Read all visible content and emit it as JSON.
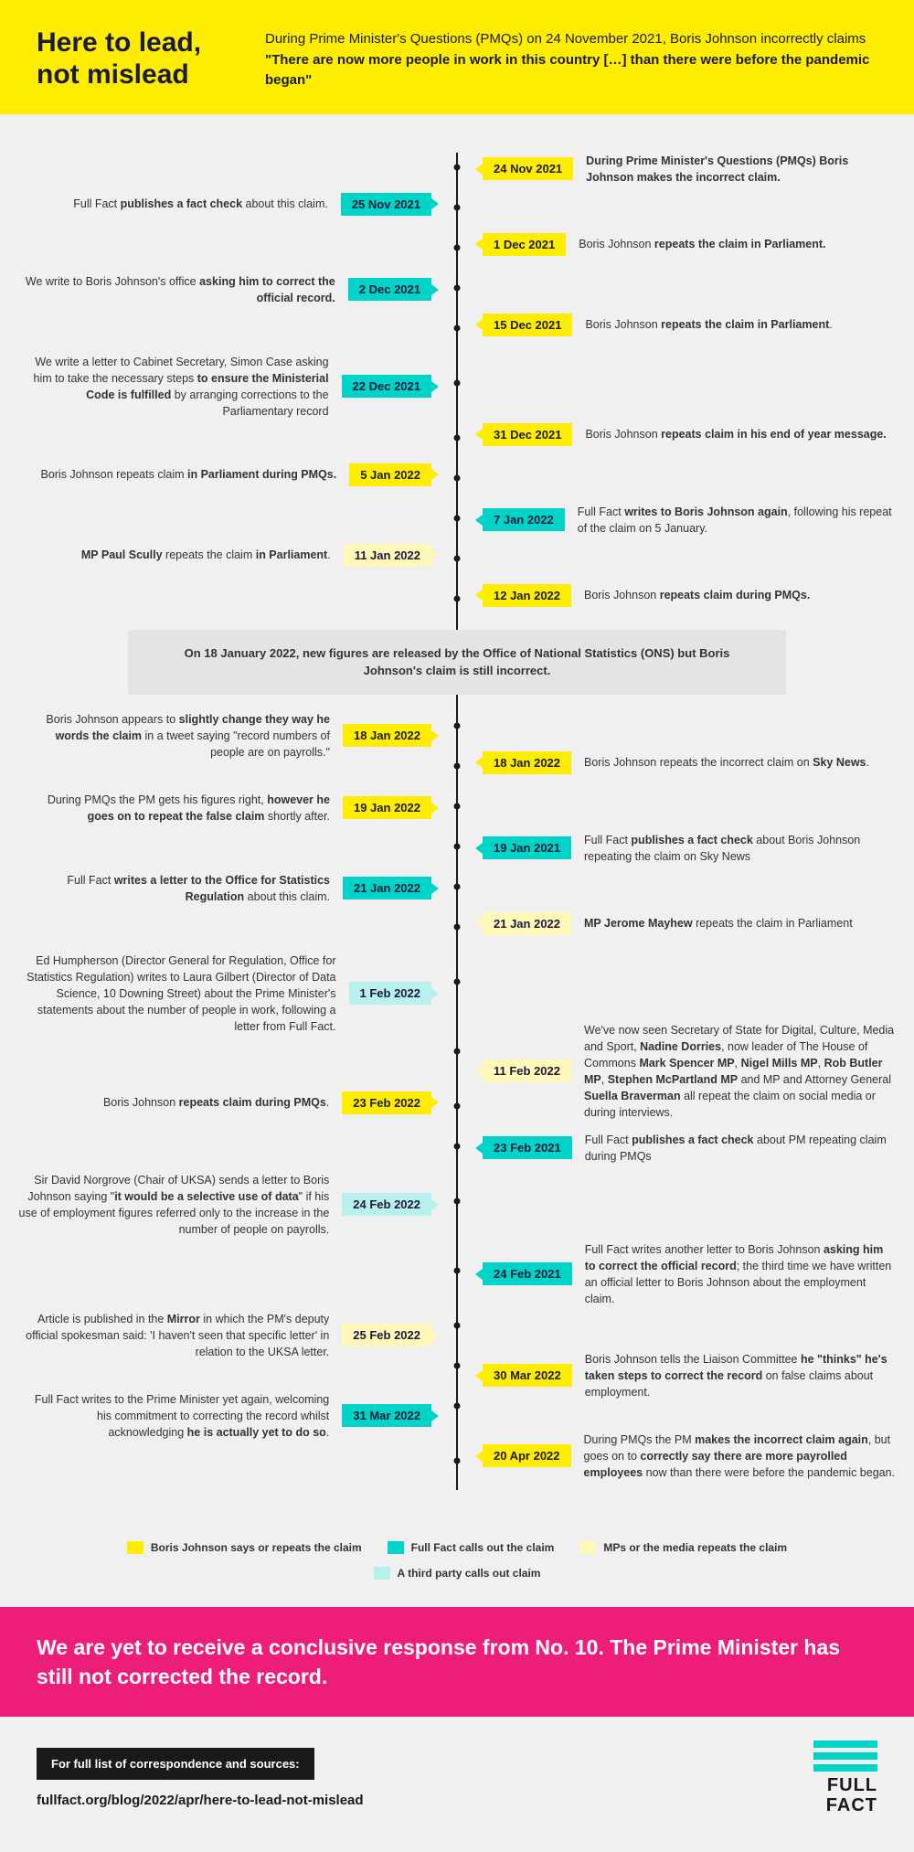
{
  "header": {
    "title": "Here to lead, not mislead",
    "desc": "During Prime Minister's Questions (PMQs) on 24 November 2021, Boris Johnson incorrectly claims <b>\"There are now more people in work in this country […] than there were before the pandemic began\"</b>"
  },
  "colors": {
    "bj": "#ffed00",
    "ff": "#00d4c8",
    "mp": "#fff8b8",
    "tp": "#b8f0ed",
    "pink": "#ed1e79"
  },
  "timeline": [
    {
      "side": "right",
      "color": "bj",
      "date": "24 Nov 2021",
      "html": "<b>During Prime Minister's Questions (PMQs) Boris Johnson makes the incorrect claim.</b>"
    },
    {
      "side": "left",
      "color": "ff",
      "date": "25 Nov 2021",
      "html": "Full Fact <b>publishes a fact check</b> about this claim."
    },
    {
      "side": "right",
      "color": "bj",
      "date": "1 Dec 2021",
      "html": "Boris Johnson <b>repeats the claim in Parliament.</b>"
    },
    {
      "side": "left",
      "color": "ff",
      "date": "2 Dec 2021",
      "html": "We write to Boris Johnson's office <b>asking him to correct the official record.</b>"
    },
    {
      "side": "right",
      "color": "bj",
      "date": "15 Dec 2021",
      "html": "Boris Johnson <b>repeats the claim in Parliament</b>."
    },
    {
      "side": "left",
      "color": "ff",
      "date": "22 Dec 2021",
      "html": "We write a letter to Cabinet Secretary, Simon Case asking him to take the necessary steps <b>to ensure the Ministerial Code is fulfilled</b> by arranging corrections to the Parliamentary record",
      "tall": true
    },
    {
      "side": "right",
      "color": "bj",
      "date": "31 Dec 2021",
      "html": "Boris Johnson <b>repeats claim in his end of year message.</b>"
    },
    {
      "side": "left",
      "color": "bj",
      "date": "5 Jan 2022",
      "html": "Boris Johnson repeats claim <b>in Parliament during PMQs.</b>"
    },
    {
      "side": "right",
      "color": "ff",
      "date": "7 Jan 2022",
      "html": "Full Fact <b>writes to Boris Johnson again</b>, following his repeat of the claim on 5 January."
    },
    {
      "side": "left",
      "color": "mp",
      "date": "11 Jan 2022",
      "html": "<b>MP Paul Scully</b> repeats the claim <b>in Parliament</b>."
    },
    {
      "side": "right",
      "color": "bj",
      "date": "12 Jan 2022",
      "html": "Boris Johnson <b>repeats claim during PMQs.</b>"
    },
    {
      "callout": true,
      "html": "On 18 January 2022, new figures are released by the Office of National Statistics (ONS) but Boris Johnson's claim is still incorrect."
    },
    {
      "side": "left",
      "color": "bj",
      "date": "18 Jan 2022",
      "html": "Boris Johnson appears to <b>slightly change they way he words the claim</b> in a tweet saying \"record numbers of people are on payrolls.\""
    },
    {
      "side": "right",
      "color": "bj",
      "date": "18 Jan 2022",
      "html": "Boris Johnson repeats the incorrect claim on <b>Sky News</b>."
    },
    {
      "side": "left",
      "color": "bj",
      "date": "19 Jan 2022",
      "html": "During PMQs the PM gets his figures right, <b>however he goes on to repeat the false claim</b> shortly after."
    },
    {
      "side": "right",
      "color": "ff",
      "date": "19 Jan 2021",
      "html": "Full Fact <b>publishes a fact check</b> about Boris Johnson repeating the claim on Sky News"
    },
    {
      "side": "left",
      "color": "ff",
      "date": "21 Jan 2022",
      "html": "Full Fact <b>writes a letter to the Office for Statistics Regulation</b> about this claim."
    },
    {
      "side": "right",
      "color": "mp",
      "date": "21 Jan 2022",
      "html": "<b>MP Jerome Mayhew</b> repeats the claim in Parliament"
    },
    {
      "side": "left",
      "color": "tp",
      "date": "1 Feb 2022",
      "html": "Ed Humpherson (Director General for Regulation, Office for Statistics Regulation) writes to Laura Gilbert (Director of Data Science, 10 Downing Street) about the Prime Minister's statements about the number of people in work, following a letter from Full Fact.",
      "tall": true
    },
    {
      "side": "right",
      "color": "mp",
      "date": "11 Feb 2022",
      "html": "We've now seen Secretary of State for Digital, Culture, Media and Sport, <b>Nadine Dorries</b>, now leader of The House of Commons <b>Mark Spencer MP</b>, <b>Nigel Mills MP</b>, <b>Rob Butler MP</b>, <b>Stephen McPartland MP</b> and MP and Attorney General <b>Suella Braverman</b> all repeat the claim on social media or during interviews.",
      "tall": true
    },
    {
      "side": "left",
      "color": "bj",
      "date": "23 Feb 2022",
      "html": "Boris Johnson <b>repeats claim during PMQs</b>."
    },
    {
      "side": "right",
      "color": "ff",
      "date": "23 Feb 2021",
      "html": "Full Fact <b>publishes a fact check</b> about PM repeating claim during PMQs"
    },
    {
      "side": "left",
      "color": "tp",
      "date": "24 Feb 2022",
      "html": "Sir David Norgrove (Chair of UKSA) sends a letter to Boris Johnson saying \"<b>it would be a selective use of data</b>\" if his use of employment figures referred only to the increase in the number of people on payrolls.",
      "tall": true
    },
    {
      "side": "right",
      "color": "ff",
      "date": "24 Feb 2021",
      "html": "Full Fact writes another letter to Boris Johnson <b>asking him to correct the official record</b>; the third time we have written an official letter to Boris Johnson about the employment claim.",
      "tall": true
    },
    {
      "side": "left",
      "color": "mp",
      "date": "25 Feb 2022",
      "html": "Article is published in the <b>Mirror</b> in which the PM's deputy official spokesman said: 'I haven't seen that specific letter' in relation to the UKSA letter."
    },
    {
      "side": "right",
      "color": "bj",
      "date": "30 Mar 2022",
      "html": "Boris Johnson tells the Liaison Committee <b>he \"thinks\" he's taken steps to correct the record</b> on false claims about employment."
    },
    {
      "side": "left",
      "color": "ff",
      "date": "31 Mar 2022",
      "html": "Full Fact writes to the Prime Minister yet again, welcoming his commitment to correcting the record whilst acknowledging <b>he is actually yet to do so</b>."
    },
    {
      "side": "right",
      "color": "bj",
      "date": "20 Apr 2022",
      "html": "During PMQs the PM <b>makes the incorrect claim again</b>, but goes on to <b>correctly say there are more payrolled employees</b> now than there were before the pandemic began.",
      "tall": true
    }
  ],
  "legend": [
    {
      "color": "bj",
      "label": "Boris Johnson says or repeats the claim"
    },
    {
      "color": "ff",
      "label": "Full Fact calls out the claim"
    },
    {
      "color": "mp",
      "label": "MPs or the media repeats the claim"
    },
    {
      "color": "tp",
      "label": "A third party calls out claim"
    }
  ],
  "pink_banner": "We are yet to receive a conclusive response from No. 10. The Prime Minister has still not corrected the record.",
  "footer": {
    "black_box": "For full list of correspondence and sources:",
    "url": "fullfact.org/blog/2022/apr/here-to-lead-not-mislead",
    "logo_line1": "FULL",
    "logo_line2": "FACT"
  }
}
